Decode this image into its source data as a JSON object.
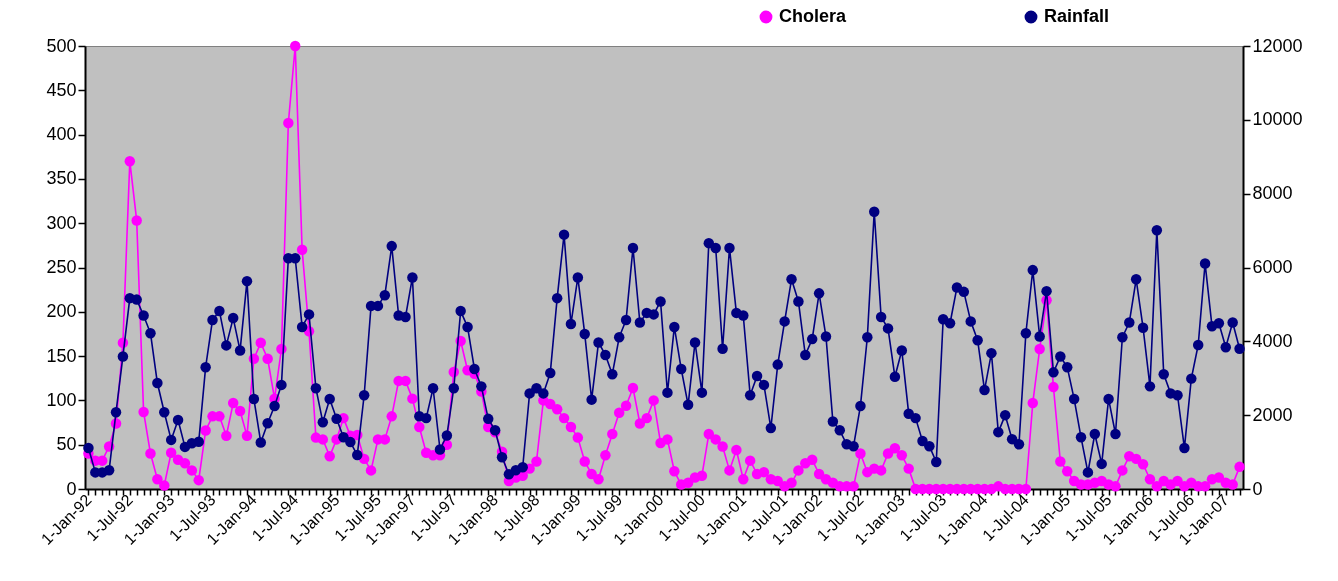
{
  "chart_data": {
    "type": "line",
    "categories": [
      "1-Jan-92",
      null,
      null,
      null,
      null,
      null,
      "1-Jul-92",
      null,
      null,
      null,
      null,
      null,
      "1-Jan-93",
      null,
      null,
      null,
      null,
      null,
      "1-Jul-93",
      null,
      null,
      null,
      null,
      null,
      "1-Jan-94",
      null,
      null,
      null,
      null,
      null,
      "1-Jul-94",
      null,
      null,
      null,
      null,
      null,
      "1-Jan-95",
      null,
      null,
      null,
      null,
      null,
      "1-Jul-95",
      null,
      null,
      null,
      null,
      "1-Jan-97",
      null,
      null,
      null,
      null,
      null,
      "1-Jul-97",
      null,
      null,
      null,
      null,
      null,
      "1-Jan-98",
      null,
      null,
      null,
      null,
      null,
      "1-Jul-98",
      null,
      null,
      null,
      null,
      null,
      "1-Jan-99",
      null,
      null,
      null,
      null,
      null,
      "1-Jul-99",
      null,
      null,
      null,
      null,
      null,
      "1-Jan-00",
      null,
      null,
      null,
      null,
      null,
      "1-Jul-00",
      null,
      null,
      null,
      null,
      null,
      "1-Jan-01",
      null,
      null,
      null,
      null,
      null,
      "1-Jul-01",
      null,
      null,
      null,
      null,
      "1-Jan-02",
      null,
      null,
      null,
      null,
      null,
      "1-Jul-02",
      null,
      null,
      null,
      null,
      null,
      "1-Jan-03",
      null,
      null,
      null,
      null,
      null,
      "1-Jul-03",
      null,
      null,
      null,
      null,
      null,
      "1-Jan-04",
      null,
      null,
      null,
      null,
      null,
      "1-Jul-04",
      null,
      null,
      null,
      null,
      null,
      "1-Jan-05",
      null,
      null,
      null,
      null,
      null,
      "1-Jul-05",
      null,
      null,
      null,
      null,
      null,
      "1-Jan-06",
      null,
      null,
      null,
      null,
      null,
      "1-Jul-06",
      null,
      null,
      null,
      null,
      "1-Jan-07",
      null,
      null
    ],
    "series": [
      {
        "name": "Cholera",
        "color": "#ff00ff",
        "values": [
          40,
          32,
          32,
          48,
          74,
          165,
          370,
          303,
          87,
          40,
          11,
          4,
          41,
          33,
          29,
          21,
          10,
          66,
          82,
          82,
          60,
          97,
          88,
          60,
          147,
          165,
          147,
          102,
          158,
          413,
          500,
          270,
          178,
          58,
          56,
          37,
          56,
          80,
          60,
          61,
          34,
          21,
          56,
          56,
          82,
          122,
          122,
          102,
          70,
          41,
          38,
          38,
          50,
          132,
          167,
          134,
          130,
          110,
          70,
          64,
          42,
          9,
          13,
          15,
          23,
          31,
          100,
          96,
          90,
          80,
          70,
          58,
          31,
          17,
          11,
          38,
          62,
          86,
          94,
          114,
          74,
          80,
          100,
          52,
          56,
          20,
          5,
          7,
          13,
          15,
          62,
          56,
          48,
          21,
          44,
          11,
          32,
          17,
          19,
          11,
          9,
          3,
          7,
          21,
          29,
          33,
          17,
          11,
          7,
          3,
          3,
          3,
          40,
          19,
          23,
          21,
          40,
          46,
          38,
          23,
          0,
          0,
          0,
          0,
          0,
          0,
          0,
          0,
          0,
          0,
          0,
          0,
          3,
          0,
          0,
          0,
          0,
          97,
          158,
          213,
          115,
          31,
          20,
          9,
          5,
          5,
          7,
          9,
          5,
          3,
          21,
          37,
          34,
          28,
          11,
          3,
          9,
          5,
          9,
          3,
          7,
          3,
          3,
          11,
          13,
          7,
          5,
          25
        ]
      },
      {
        "name": "Rainfall",
        "color": "#000080",
        "axis": "y2",
        "values": [
          1110,
          450,
          450,
          510,
          2080,
          3590,
          5170,
          5130,
          4700,
          4220,
          2870,
          2080,
          1330,
          1870,
          1140,
          1240,
          1280,
          3300,
          4580,
          4820,
          3890,
          4630,
          3750,
          5630,
          2440,
          1260,
          1780,
          2250,
          2820,
          6250,
          6250,
          4390,
          4730,
          2730,
          1810,
          2440,
          1900,
          1400,
          1270,
          920,
          2540,
          4960,
          4960,
          5250,
          6580,
          4700,
          4660,
          5730,
          1970,
          1920,
          2730,
          1070,
          1450,
          2730,
          4820,
          4390,
          3250,
          2780,
          1900,
          1590,
          860,
          400,
          510,
          590,
          2590,
          2730,
          2590,
          3140,
          5170,
          6890,
          4470,
          5730,
          4200,
          2420,
          3970,
          3630,
          3110,
          4110,
          4580,
          6530,
          4510,
          4770,
          4730,
          5080,
          2610,
          4390,
          3250,
          2280,
          3970,
          2610,
          6660,
          6530,
          3800,
          6530,
          4770,
          4700,
          2540,
          3060,
          2820,
          1650,
          3370,
          4540,
          5680,
          5080,
          3630,
          4060,
          5300,
          4130,
          1830,
          1590,
          1210,
          1160,
          2250,
          4110,
          7510,
          4660,
          4350,
          3040,
          3750,
          2040,
          1920,
          1300,
          1160,
          730,
          4600,
          4490,
          5460,
          5340,
          4540,
          4030,
          2680,
          3680,
          1540,
          2000,
          1350,
          1210,
          4220,
          5930,
          4130,
          5360,
          3160,
          3590,
          3300,
          2440,
          1400,
          450,
          1490,
          680,
          2440,
          1490,
          4110,
          4510,
          5680,
          4370,
          2780,
          7010,
          3110,
          2590,
          2540,
          1110,
          2990,
          3900,
          6110,
          4410,
          4490,
          3840,
          4510,
          3800
        ]
      }
    ],
    "ylim": [
      0,
      500
    ],
    "yticks": [
      0,
      50,
      100,
      150,
      200,
      250,
      300,
      350,
      400,
      450,
      500
    ],
    "y2lim": [
      0,
      12000
    ],
    "y2ticks": [
      0,
      2000,
      4000,
      6000,
      8000,
      10000,
      12000
    ],
    "legend": "top right",
    "marker": "circle",
    "line_style": "solid"
  }
}
